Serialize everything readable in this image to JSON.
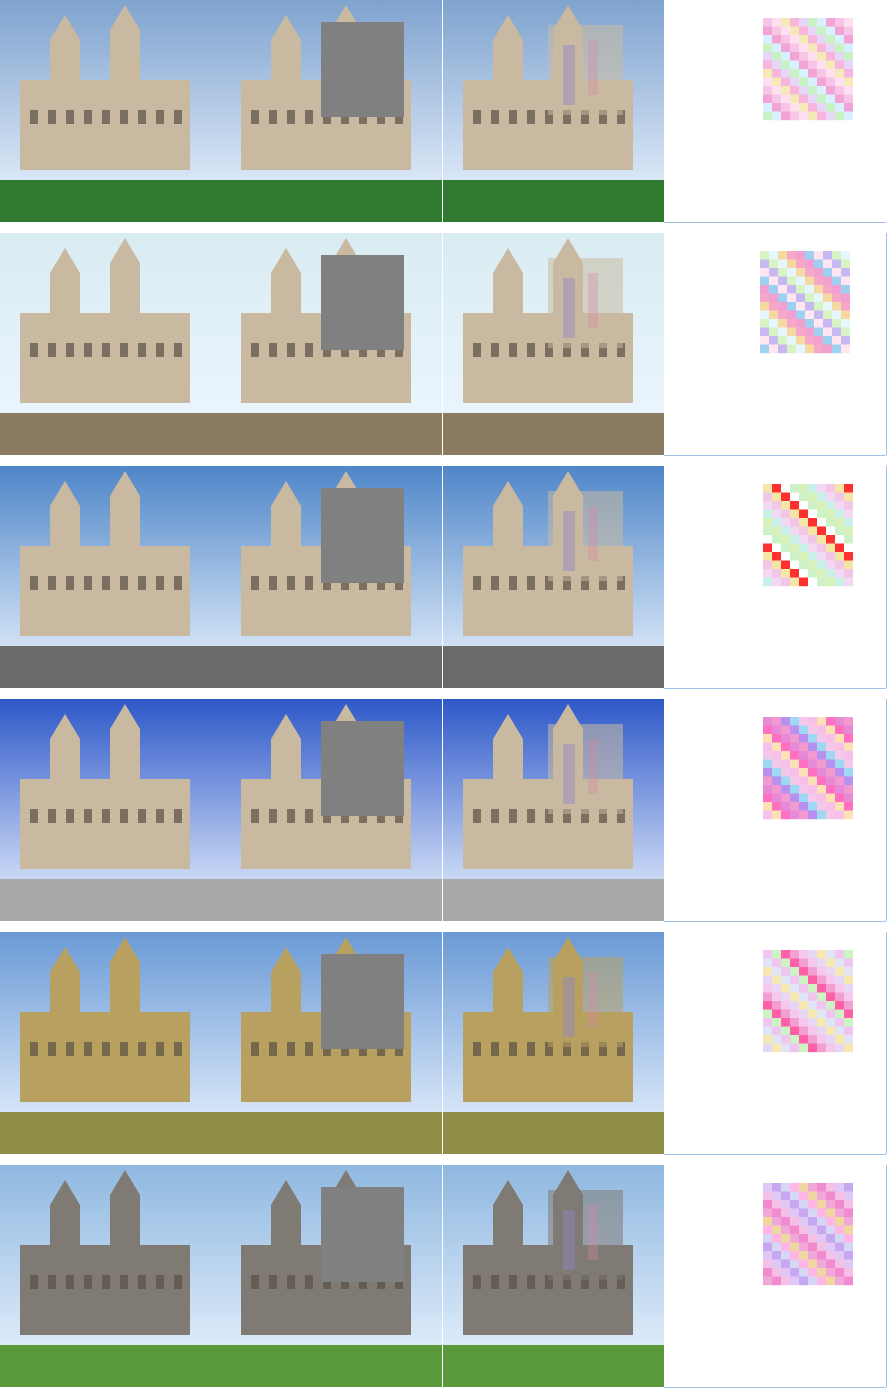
{
  "figure": {
    "rows": [
      {
        "scene": "renaissance-chateau-round-towers",
        "sky": "#7fa3cf",
        "ground": "#2f7a2f",
        "heat": [
          "#f7c6e6",
          "#c9f2c4",
          "#f5e9b8",
          "#f2a4d6",
          "#e6d6f7",
          "#ffe0f0",
          "#d8f0ff",
          "#f9b6dc"
        ]
      },
      {
        "scene": "baroque-cathedral-twin-spires",
        "sky": "#d9ecf2",
        "ground": "#8a7a60",
        "heat": [
          "#f7a8c8",
          "#d8f4c4",
          "#9fd0f2",
          "#f6d9a0",
          "#c8b8f2",
          "#f2a0d0",
          "#e6f6ff",
          "#ffe6f0"
        ]
      },
      {
        "scene": "italian-piazza-dome-campanile",
        "sky": "#4f86c8",
        "ground": "#6a6a6a",
        "heat": [
          "#f3d8f2",
          "#cdf2c8",
          "#f4e7a6",
          "#c8f0e8",
          "#ffffff",
          "#f2c6e6",
          "#d7f1b8",
          "#ff3030"
        ]
      },
      {
        "scene": "gothic-cathedral-facade",
        "sky": "#2e58c8",
        "ground": "#a9a9a9",
        "heat": [
          "#f29ad0",
          "#fbe0b8",
          "#9ed8f2",
          "#e68ad8",
          "#f6c0e8",
          "#b890f0",
          "#ff70c0",
          "#f4c8ea"
        ]
      },
      {
        "scene": "english-manor-house-lawn",
        "sky": "#6a9ad6",
        "ground": "#8f8f4a",
        "heat": [
          "#f6c8ec",
          "#cdf2c4",
          "#f5e8b0",
          "#f2a0d2",
          "#f0c6f0",
          "#e8d6f6",
          "#ff5fa6",
          "#dfe4f6"
        ]
      },
      {
        "scene": "medieval-castle-towers",
        "sky": "#8fb8e0",
        "ground": "#5a9a3a",
        "heat": [
          "#f5c0e6",
          "#f0d6a0",
          "#c6a8f0",
          "#f28ad0",
          "#ffb6e4",
          "#e0c8f6",
          "#f0a8d8",
          "#d6d6f6"
        ]
      }
    ]
  }
}
